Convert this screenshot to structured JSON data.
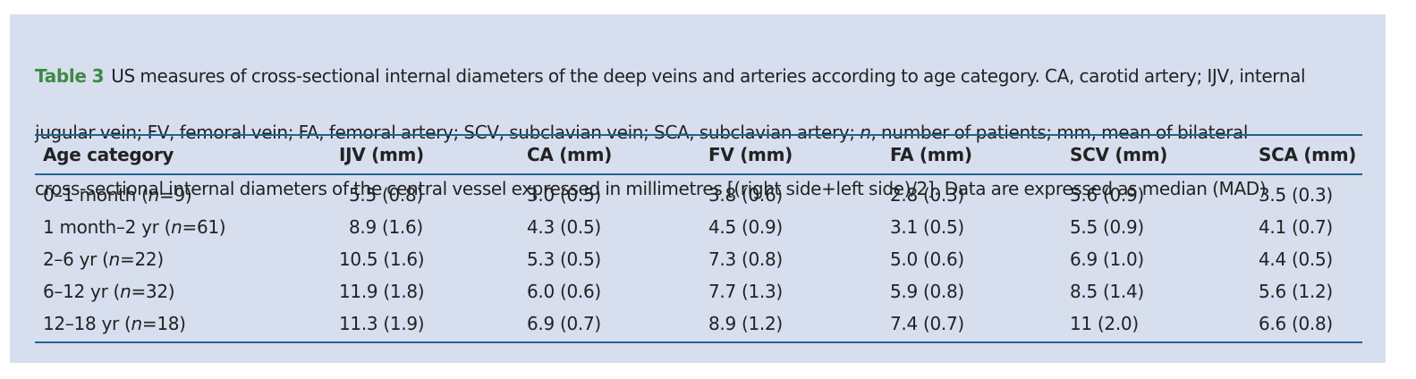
{
  "caption": {
    "label": "Table 3",
    "line1": "US measures of cross-sectional internal diameters of the deep veins and arteries according to age category. CA, carotid artery; IJV, internal",
    "line2": "jugular vein; FV, femoral vein; FA, femoral artery; SCV, subclavian vein; SCA, subclavian artery; n, number of patients; mm, mean of bilateral",
    "line3": "cross-sectional internal diameters of the central vessel expressed in millimetres [(right side+left side)/2]. Data are expressed as median (MAD)"
  },
  "table": {
    "headers": [
      "Age category",
      "IJV (mm)",
      "CA (mm)",
      "FV (mm)",
      "FA (mm)",
      "SCV (mm)",
      "SCA (mm)"
    ],
    "rows": [
      {
        "age": "0–1 month (n=9)",
        "ijv": "5.5 (0.8)",
        "ca": "3.0 (0.5)",
        "fv": "3.8 (0.6)",
        "fa": "2.8 (0.3)",
        "scv": "5.6 (0.9)",
        "sca": "3.5 (0.3)"
      },
      {
        "age": "1 month–2 yr (n=61)",
        "ijv": "8.9 (1.6)",
        "ca": "4.3 (0.5)",
        "fv": "4.5 (0.9)",
        "fa": "3.1 (0.5)",
        "scv": "5.5 (0.9)",
        "sca": "4.1 (0.7)"
      },
      {
        "age": "2–6 yr (n=22)",
        "ijv": "10.5 (1.6)",
        "ca": "5.3 (0.5)",
        "fv": "7.3 (0.8)",
        "fa": "5.0 (0.6)",
        "scv": "6.9 (1.0)",
        "sca": "4.4 (0.5)"
      },
      {
        "age": "6–12 yr (n=32)",
        "ijv": "11.9 (1.8)",
        "ca": "6.0 (0.6)",
        "fv": "7.7 (1.3)",
        "fa": "5.9 (0.8)",
        "scv": "8.5 (1.4)",
        "sca": "5.6 (1.2)"
      },
      {
        "age": "12–18 yr (n=18)",
        "ijv": "11.3 (1.9)",
        "ca": "6.9 (0.7)",
        "fv": "8.9 (1.2)",
        "fa": "7.4 (0.7)",
        "scv": "11 (2.0)",
        "sca": "6.6 (0.8)"
      }
    ]
  },
  "colors": {
    "panel_background": "#d7dfee",
    "label_green": "#3d8a45",
    "rule_blue": "#1e6496"
  }
}
